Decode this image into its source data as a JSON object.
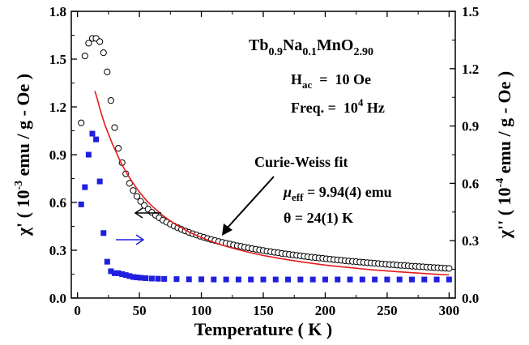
{
  "chart_data": {
    "type": "scatter",
    "title_parts": [
      {
        "text": "Tb",
        "sub": false
      },
      {
        "text": "0.9",
        "sub": true
      },
      {
        "text": "Na",
        "sub": false
      },
      {
        "text": "0.1",
        "sub": true
      },
      {
        "text": "MnO",
        "sub": false
      },
      {
        "text": "2.90",
        "sub": true
      }
    ],
    "xlabel": "Temperature ( K )",
    "ylabel_left": {
      "pre": "χ' ( 10",
      "sup": "-3",
      "post": " emu / g - Oe )"
    },
    "ylabel_right": {
      "pre": "χ'' ( 10",
      "sup": "-4",
      "post": " emu / g - Oe )"
    },
    "xlim": [
      -5,
      305
    ],
    "ylim_left": [
      0,
      1.8
    ],
    "ylim_right": [
      0,
      1.5
    ],
    "x_ticks": [
      "0",
      "50",
      "100",
      "150",
      "200",
      "250",
      "300"
    ],
    "y_left_ticks": [
      "0.0",
      "0.3",
      "0.6",
      "0.9",
      "1.2",
      "1.5",
      "1.8"
    ],
    "y_right_ticks": [
      "0.0",
      "0.3",
      "0.6",
      "0.9",
      "1.2",
      "1.5"
    ],
    "annotations": {
      "hac": {
        "label": "H",
        "sub": "ac",
        "value": "  =  10 Oe"
      },
      "freq": {
        "label": "Freq. =  10",
        "sup": "4",
        "unit": " Hz"
      },
      "fit_label": "Curie-Weiss fit",
      "mu": {
        "label": "μ",
        "sub": "eff",
        "value": " = 9.94(4) emu"
      },
      "theta": "θ = 24(1) K"
    },
    "colors": {
      "fit": "#e41a1c",
      "chi_imag": "#1f1fe0",
      "chi_real": "#000000"
    },
    "series": [
      {
        "axis": "left",
        "marker": "open-circle",
        "x": [
          3,
          6,
          9,
          12,
          15,
          18,
          21,
          24,
          27,
          30,
          33,
          36,
          39,
          42,
          45,
          48,
          51,
          54,
          57,
          60,
          63,
          66,
          69,
          72,
          75,
          78,
          81,
          84,
          87,
          90,
          93,
          96,
          99,
          102,
          105,
          108,
          111,
          114,
          117,
          120,
          123,
          126,
          129,
          132,
          135,
          138,
          141,
          144,
          147,
          150,
          153,
          156,
          159,
          162,
          165,
          168,
          171,
          174,
          177,
          180,
          183,
          186,
          189,
          192,
          195,
          198,
          201,
          204,
          207,
          210,
          213,
          216,
          219,
          222,
          225,
          228,
          231,
          234,
          237,
          240,
          243,
          246,
          249,
          252,
          255,
          258,
          261,
          264,
          267,
          270,
          273,
          276,
          279,
          282,
          285,
          288,
          291,
          294,
          297,
          300
        ],
        "y": [
          1.1,
          1.52,
          1.6,
          1.63,
          1.63,
          1.61,
          1.54,
          1.42,
          1.24,
          1.07,
          0.94,
          0.85,
          0.78,
          0.72,
          0.675,
          0.638,
          0.607,
          0.581,
          0.558,
          0.538,
          0.52,
          0.504,
          0.489,
          0.476,
          0.464,
          0.452,
          0.441,
          0.431,
          0.421,
          0.412,
          0.404,
          0.396,
          0.388,
          0.381,
          0.374,
          0.367,
          0.361,
          0.355,
          0.349,
          0.344,
          0.339,
          0.333,
          0.328,
          0.324,
          0.319,
          0.315,
          0.31,
          0.306,
          0.302,
          0.298,
          0.294,
          0.291,
          0.287,
          0.284,
          0.28,
          0.277,
          0.274,
          0.271,
          0.268,
          0.265,
          0.262,
          0.259,
          0.256,
          0.254,
          0.251,
          0.249,
          0.246,
          0.244,
          0.241,
          0.239,
          0.237,
          0.234,
          0.232,
          0.23,
          0.228,
          0.226,
          0.224,
          0.222,
          0.22,
          0.218,
          0.216,
          0.214,
          0.212,
          0.21,
          0.209,
          0.207,
          0.205,
          0.204,
          0.202,
          0.2,
          0.199,
          0.197,
          0.196,
          0.194,
          0.193,
          0.191,
          0.19,
          0.188,
          0.187,
          0.186
        ]
      },
      {
        "axis": "left",
        "type": "line",
        "label": "Curie-Weiss fit",
        "x": [
          14,
          16,
          18,
          20,
          22,
          25,
          28,
          31,
          35,
          40,
          45,
          50,
          55,
          60,
          70,
          80,
          90,
          100,
          110,
          120,
          130,
          140,
          150,
          160,
          170,
          180,
          190,
          200,
          210,
          220,
          230,
          240,
          250,
          260,
          270,
          280,
          290,
          300
        ],
        "y": [
          1.3,
          1.25,
          1.19,
          1.14,
          1.09,
          1.03,
          0.97,
          0.92,
          0.85,
          0.78,
          0.72,
          0.665,
          0.619,
          0.578,
          0.511,
          0.458,
          0.415,
          0.38,
          0.35,
          0.325,
          0.303,
          0.284,
          0.267,
          0.253,
          0.24,
          0.228,
          0.217,
          0.207,
          0.199,
          0.191,
          0.183,
          0.176,
          0.17,
          0.164,
          0.159,
          0.154,
          0.149,
          0.145
        ]
      },
      {
        "axis": "right",
        "marker": "filled-square",
        "x": [
          3,
          6,
          9,
          12,
          15,
          18,
          21,
          24,
          27,
          30,
          33,
          36,
          39,
          42,
          45,
          48,
          51,
          55,
          60,
          65,
          70,
          80,
          90,
          100,
          110,
          120,
          130,
          140,
          150,
          160,
          170,
          180,
          190,
          200,
          210,
          220,
          230,
          240,
          250,
          260,
          270,
          280,
          290,
          300
        ],
        "y": [
          0.49,
          0.58,
          0.75,
          0.86,
          0.83,
          0.61,
          0.34,
          0.19,
          0.14,
          0.13,
          0.13,
          0.125,
          0.12,
          0.115,
          0.11,
          0.108,
          0.106,
          0.104,
          0.102,
          0.101,
          0.1,
          0.099,
          0.098,
          0.098,
          0.097,
          0.097,
          0.097,
          0.097,
          0.097,
          0.097,
          0.097,
          0.097,
          0.097,
          0.097,
          0.097,
          0.097,
          0.097,
          0.097,
          0.097,
          0.097,
          0.097,
          0.097,
          0.097,
          0.097
        ]
      }
    ]
  }
}
